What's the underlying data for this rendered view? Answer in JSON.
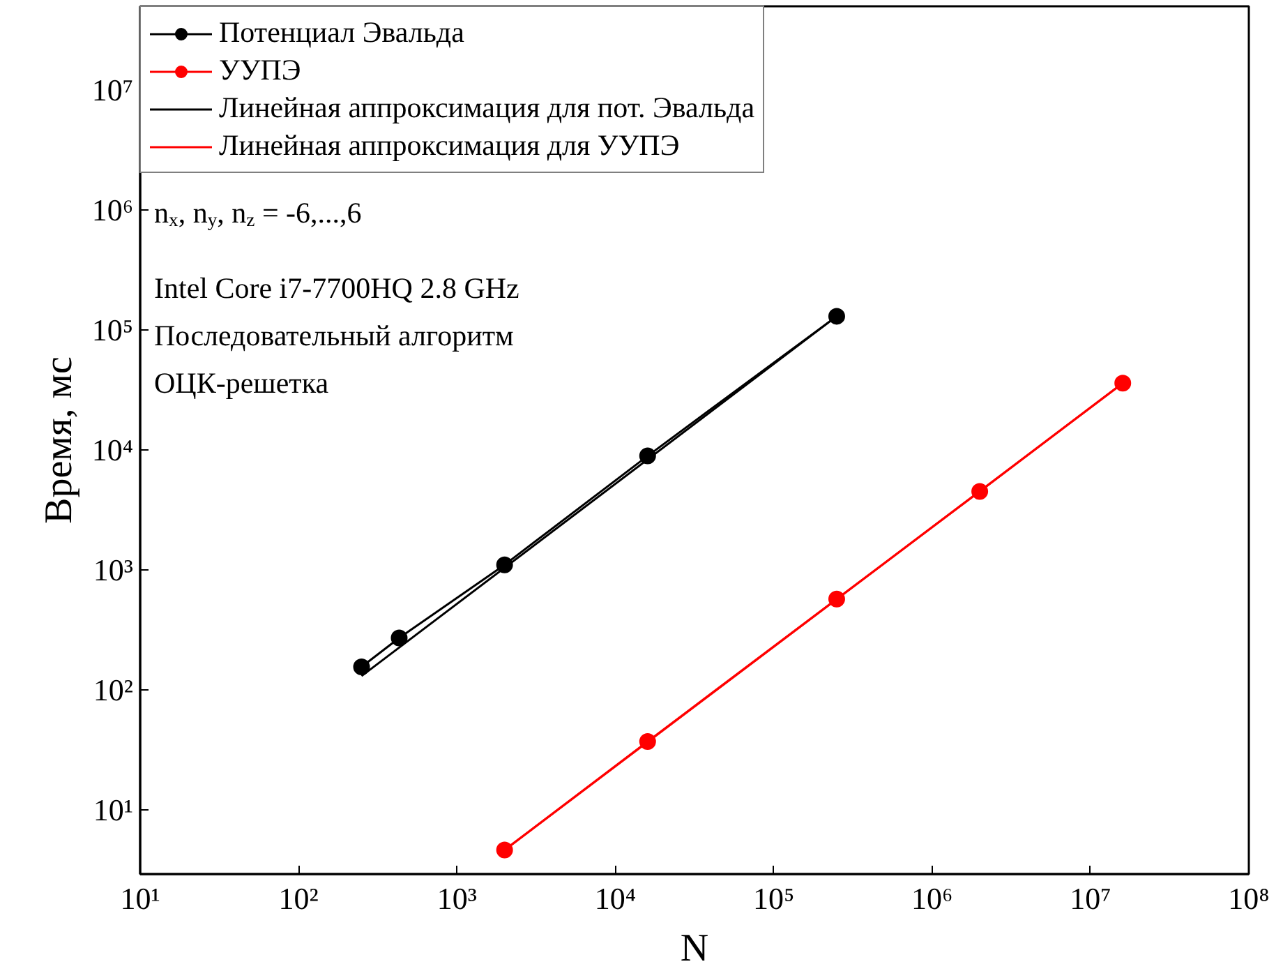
{
  "chart_data": {
    "type": "line",
    "xlabel": "N",
    "ylabel": "Время, мс",
    "log": "xy",
    "grid": false,
    "legend": "top left",
    "xlim": [
      10,
      100000000
    ],
    "ylim": [
      2.9,
      50000000
    ],
    "xticks": [
      {
        "value": 10,
        "label": "10¹"
      },
      {
        "value": 100,
        "label": "10²"
      },
      {
        "value": 1000,
        "label": "10³"
      },
      {
        "value": 10000,
        "label": "10⁴"
      },
      {
        "value": 100000,
        "label": "10⁵"
      },
      {
        "value": 1000000,
        "label": "10⁶"
      },
      {
        "value": 10000000,
        "label": "10⁷"
      },
      {
        "value": 100000000,
        "label": "10⁸"
      }
    ],
    "yticks": [
      {
        "value": 10,
        "label": "10¹"
      },
      {
        "value": 100,
        "label": "10²"
      },
      {
        "value": 1000,
        "label": "10³"
      },
      {
        "value": 10000,
        "label": "10⁴"
      },
      {
        "value": 100000,
        "label": "10⁵"
      },
      {
        "value": 1000000,
        "label": "10⁶"
      },
      {
        "value": 10000000,
        "label": "10⁷"
      }
    ],
    "series": [
      {
        "name": "Потенциал Эвальда",
        "color": "#000000",
        "marker": "circle",
        "x": [
          250,
          432,
          2000,
          16000,
          250000
        ],
        "values": [
          155,
          270,
          1100,
          8900,
          130000
        ]
      },
      {
        "name": "УУПЭ",
        "color": "#ff0000",
        "marker": "circle",
        "x": [
          2000,
          16000,
          250000,
          2000000,
          16000000
        ],
        "values": [
          4.6,
          37,
          570,
          4500,
          36000
        ]
      },
      {
        "name": "Линейная аппроксимация для пот. Эвальда",
        "color": "#000000",
        "marker": "none",
        "x": [
          250,
          250000
        ],
        "values": [
          130,
          130000
        ]
      },
      {
        "name": "Линейная аппроксимация для УУПЭ",
        "color": "#ff0000",
        "marker": "none",
        "x": [
          2000,
          16000000
        ],
        "values": [
          4.6,
          36000
        ]
      }
    ],
    "annotations": [
      "n$_{x}$, n$_{y}$, n$_{z}$ = -6,...,6",
      "Intel Core i7-7700HQ 2.8 GHz",
      "Последовательный алгоритм",
      "ОЦК-решетка"
    ]
  }
}
